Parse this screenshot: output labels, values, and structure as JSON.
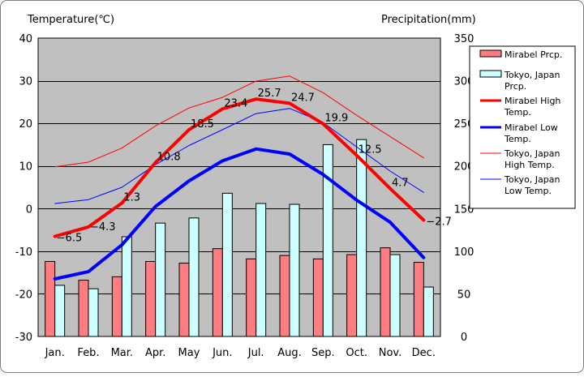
{
  "chart_data": {
    "type": "bar+line",
    "left_axis_title": "Temperature(℃)",
    "right_axis_title": "Precipitation(mm)",
    "categories": [
      "Jan.",
      "Feb.",
      "Mar.",
      "Apr.",
      "May",
      "Jun.",
      "Jul.",
      "Aug.",
      "Sep.",
      "Oct.",
      "Nov.",
      "Dec."
    ],
    "left_ylim": [
      -30,
      40
    ],
    "left_ticks": [
      -30,
      -20,
      -10,
      0,
      10,
      20,
      30,
      40
    ],
    "left_tick_labels": [
      "-30",
      "-20",
      "-10",
      "0",
      "10",
      "20",
      "30",
      "40"
    ],
    "right_ylim": [
      0,
      350
    ],
    "right_ticks": [
      0,
      50,
      100,
      150,
      200,
      250,
      300,
      350
    ],
    "right_tick_labels": [
      "0",
      "50",
      "100",
      "150",
      "200",
      "250",
      "300",
      "350"
    ],
    "grid": "horizontal",
    "plot_background": "#c0c0c0",
    "bar_series": [
      {
        "name": "Mirabel Prcp.",
        "axis": "right",
        "color": "#ff7c80",
        "values": [
          88,
          66,
          70,
          88,
          86,
          103,
          91,
          95,
          91,
          96,
          104,
          87
        ]
      },
      {
        "name": "Tokyo, Japan Prcp.",
        "axis": "right",
        "color": "#ccffff",
        "values": [
          60,
          56,
          117,
          133,
          139,
          168,
          156,
          155,
          225,
          231,
          96,
          58
        ]
      }
    ],
    "line_series": [
      {
        "name": "Mirabel High Temp.",
        "axis": "left",
        "color": "#ff0000",
        "width": 4,
        "values": [
          -6.5,
          -4.3,
          1.3,
          10.8,
          18.5,
          23.4,
          25.7,
          24.7,
          19.9,
          12.5,
          4.7,
          -2.7
        ],
        "data_labels": [
          "−6.5",
          "−4.3",
          "1.3",
          "10.8",
          "18.5",
          "23.4",
          "25.7",
          "24.7",
          "19.9",
          "12.5",
          "4.7",
          "−2.7"
        ]
      },
      {
        "name": "Mirabel Low Temp.",
        "axis": "left",
        "color": "#0000ff",
        "width": 4,
        "values": [
          -16.5,
          -14.8,
          -8.5,
          0.5,
          6.5,
          11.2,
          14.0,
          12.8,
          8.0,
          2.0,
          -3.2,
          -11.5
        ]
      },
      {
        "name": "Tokyo, Japan High Temp.",
        "axis": "left",
        "color": "#ff0000",
        "width": 1,
        "values": [
          9.8,
          10.9,
          14.2,
          19.4,
          23.6,
          26.1,
          29.9,
          31.1,
          27.2,
          21.9,
          16.9,
          11.9
        ]
      },
      {
        "name": "Tokyo, Japan Low Temp.",
        "axis": "left",
        "color": "#0000ff",
        "width": 1,
        "values": [
          1.2,
          2.1,
          5.0,
          10.3,
          14.8,
          18.5,
          22.3,
          23.5,
          20.2,
          14.5,
          8.8,
          3.8
        ]
      }
    ],
    "legend": {
      "placement": "right",
      "entries": [
        {
          "label_lines": [
            "Mirabel Prcp."
          ],
          "kind": "bar",
          "color": "#ff7c80"
        },
        {
          "label_lines": [
            "Tokyo, Japan",
            "Prcp."
          ],
          "kind": "bar",
          "color": "#ccffff"
        },
        {
          "label_lines": [
            "Mirabel High",
            "Temp."
          ],
          "kind": "line",
          "color": "#ff0000",
          "width": 3
        },
        {
          "label_lines": [
            "Mirabel Low",
            "Temp."
          ],
          "kind": "line",
          "color": "#0000ff",
          "width": 3
        },
        {
          "label_lines": [
            "Tokyo, Japan",
            "High Temp."
          ],
          "kind": "line",
          "color": "#ff0000",
          "width": 1
        },
        {
          "label_lines": [
            "Tokyo, Japan",
            "Low Temp."
          ],
          "kind": "line",
          "color": "#0000ff",
          "width": 1
        }
      ]
    }
  }
}
